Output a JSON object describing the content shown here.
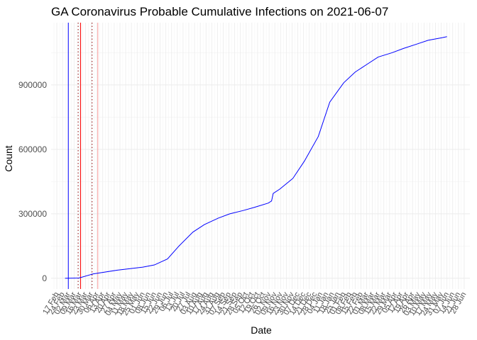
{
  "chart_data": {
    "type": "line",
    "title": "GA Coronavirus Probable Cumulative Infections on 2021-06-07",
    "xlabel": "Date",
    "ylabel": "Count",
    "x_range": [
      "2020-02-10",
      "2021-07-05"
    ],
    "ylim": [
      -50000,
      1190000
    ],
    "y_ticks": [
      0,
      300000,
      600000,
      900000
    ],
    "x_tick_labels": [
      "17 Feb",
      "24 Feb",
      "02 Mar",
      "09 Mar",
      "16 Mar",
      "23 Mar",
      "30 Mar",
      "06 Apr",
      "13 Apr",
      "20 Apr",
      "27 Apr",
      "04 May",
      "11 May",
      "18 May",
      "25 May",
      "01 Jun",
      "08 Jun",
      "15 Jun",
      "22 Jun",
      "29 Jun",
      "06 Jul",
      "13 Jul",
      "20 Jul",
      "27 Jul",
      "03 Aug",
      "10 Aug",
      "17 Aug",
      "24 Aug",
      "31 Aug",
      "07 Sep",
      "14 Sep",
      "21 Sep",
      "28 Sep",
      "05 Oct",
      "12 Oct",
      "19 Oct",
      "26 Oct",
      "02 Nov",
      "09 Nov",
      "16 Nov",
      "23 Nov",
      "30 Nov",
      "07 Dec",
      "14 Dec",
      "21 Dec",
      "28 Dec",
      "04 Jan",
      "11 Jan",
      "18 Jan",
      "25 Jan",
      "01 Feb",
      "08 Feb",
      "15 Feb",
      "22 Feb",
      "01 Mar",
      "08 Mar",
      "15 Mar",
      "22 Mar",
      "29 Mar",
      "05 Apr",
      "12 Apr",
      "19 Apr",
      "26 Apr",
      "03 May",
      "10 May",
      "17 May",
      "24 May",
      "31 May",
      "07 Jun",
      "14 Jun",
      "21 Jun",
      "28 Jun"
    ],
    "grid": true,
    "vertical_lines": [
      {
        "x": "2020-03-02",
        "color": "#0000ff",
        "style": "solid"
      },
      {
        "x": "2020-03-14",
        "color": "#8b0000",
        "style": "dotted"
      },
      {
        "x": "2020-03-17",
        "color": "#ff0000",
        "style": "solid"
      },
      {
        "x": "2020-03-31",
        "color": "#8b0000",
        "style": "dotted"
      },
      {
        "x": "2020-04-07",
        "color": "#ff9999",
        "style": "solid"
      }
    ],
    "series": [
      {
        "color": "#0000ff",
        "points": [
          [
            "2020-02-27",
            0
          ],
          [
            "2020-03-15",
            1000
          ],
          [
            "2020-04-01",
            20000
          ],
          [
            "2020-05-01",
            38000
          ],
          [
            "2020-06-01",
            52000
          ],
          [
            "2020-06-15",
            62000
          ],
          [
            "2020-07-01",
            90000
          ],
          [
            "2020-07-15",
            150000
          ],
          [
            "2020-08-01",
            215000
          ],
          [
            "2020-08-15",
            250000
          ],
          [
            "2020-09-01",
            280000
          ],
          [
            "2020-09-15",
            300000
          ],
          [
            "2020-10-01",
            315000
          ],
          [
            "2020-10-15",
            330000
          ],
          [
            "2020-11-01",
            350000
          ],
          [
            "2020-11-05",
            360000
          ],
          [
            "2020-11-07",
            395000
          ],
          [
            "2020-11-15",
            415000
          ],
          [
            "2020-12-01",
            465000
          ],
          [
            "2020-12-15",
            545000
          ],
          [
            "2021-01-01",
            660000
          ],
          [
            "2021-01-15",
            820000
          ],
          [
            "2021-02-01",
            910000
          ],
          [
            "2021-02-15",
            960000
          ],
          [
            "2021-03-01",
            995000
          ],
          [
            "2021-03-15",
            1030000
          ],
          [
            "2021-04-01",
            1050000
          ],
          [
            "2021-04-15",
            1070000
          ],
          [
            "2021-05-01",
            1090000
          ],
          [
            "2021-05-15",
            1108000
          ],
          [
            "2021-06-01",
            1120000
          ],
          [
            "2021-06-07",
            1125000
          ]
        ]
      }
    ]
  }
}
